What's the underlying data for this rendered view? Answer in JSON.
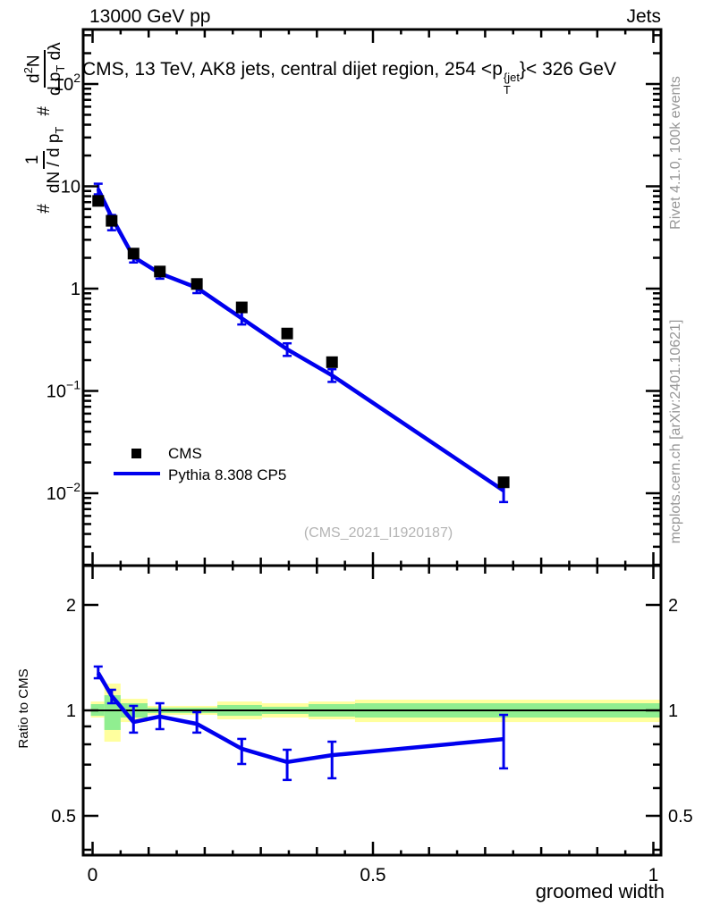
{
  "header": {
    "left": "13000 GeV pp",
    "right": "Jets"
  },
  "title": {
    "prefix": "CMS, 13 TeV, AK8 jets, central dijet region, 254 <p",
    "sup": "{jet",
    "sub": "T",
    "suffix": "}< 326 GeV"
  },
  "y_title": {
    "hash1": "#",
    "num1": "1",
    "den1_main": "dN / d p",
    "den1_sub": "T",
    "hash2": "#",
    "num2_a": "d",
    "num2_exp": "2",
    "num2_b": "N",
    "den2_a": "d p",
    "den2_sub": "T",
    "den2_b": " dλ"
  },
  "legend": {
    "items": [
      {
        "label": "CMS",
        "marker": "filled-square"
      },
      {
        "label": "Pythia 8.308 CP5",
        "marker": "line"
      }
    ]
  },
  "watermark": "(CMS_2021_I1920187)",
  "side_notes": {
    "top": "Rivet 4.1.0,  100k events",
    "bottom": "mcplots.cern.ch [arXiv:2401.10621]"
  },
  "ratio_panel_label": "Ratio to CMS",
  "colors": {
    "mc_line": "#0000ee",
    "data_marker": "#000000",
    "band_total": "#ffff9e",
    "band_stat": "#90ee90",
    "frame": "#000000",
    "side_text": "#969696",
    "watermark_text": "#b4b4b4"
  },
  "chart_data": {
    "type": "line",
    "title": "CMS, 13 TeV, AK8 jets, central dijet region, 254 <p_T^{jet}< 326 GeV",
    "xlabel": "groomed width",
    "x_axis": {
      "range": [
        -0.017,
        1.013
      ],
      "ticks": [
        {
          "v": 0,
          "label": "0"
        },
        {
          "v": 0.5,
          "label": "0.5"
        },
        {
          "v": 1,
          "label": "1"
        }
      ],
      "minor_tick_step": 0.05
    },
    "main_panel": {
      "y_scale": "log",
      "y_range": [
        0.002,
        341
      ],
      "y_ticks": [
        {
          "v": 100,
          "base": "10",
          "exp": "2"
        },
        {
          "v": 10,
          "base": "10",
          "exp": ""
        },
        {
          "v": 1,
          "base": "1",
          "exp": ""
        },
        {
          "v": 0.1,
          "base": "10",
          "exp": "−1"
        },
        {
          "v": 0.01,
          "base": "10",
          "exp": "−2"
        }
      ],
      "series": [
        {
          "name": "CMS",
          "type": "scatter",
          "marker": "filled-square",
          "color": "#000000",
          "x": [
            0.01,
            0.034,
            0.073,
            0.12,
            0.186,
            0.266,
            0.347,
            0.427,
            0.733
          ],
          "y": [
            7.2,
            4.6,
            2.2,
            1.47,
            1.11,
            0.655,
            0.364,
            0.191,
            0.0128
          ]
        },
        {
          "name": "Pythia 8.308 CP5",
          "type": "line",
          "color": "#0000ee",
          "x": [
            0.01,
            0.034,
            0.073,
            0.12,
            0.186,
            0.266,
            0.347,
            0.427,
            0.733
          ],
          "y": [
            9.4,
            5.0,
            2.04,
            1.41,
            1.02,
            0.512,
            0.255,
            0.142,
            0.0106
          ],
          "y_err_hi": [
            10.6,
            5.24,
            2.29,
            1.56,
            1.15,
            0.59,
            0.292,
            0.163,
            0.012
          ],
          "y_err_lo": [
            8.34,
            3.72,
            1.8,
            1.25,
            0.904,
            0.446,
            0.22,
            0.1225,
            0.0082
          ]
        }
      ]
    },
    "ratio_panel": {
      "y_scale": "log",
      "y_range": [
        0.386,
        2.59
      ],
      "ylabel": "Ratio to CMS",
      "y_ticks": [
        {
          "v": 2,
          "label": "2"
        },
        {
          "v": 1,
          "label": "1"
        },
        {
          "v": 0.5,
          "label": "0.5"
        }
      ],
      "y_minor_ticks": [
        0.4,
        0.6,
        0.7,
        0.8,
        0.9
      ],
      "ratio": {
        "x": [
          0.01,
          0.034,
          0.073,
          0.12,
          0.186,
          0.266,
          0.347,
          0.427,
          0.733
        ],
        "y": [
          1.28,
          1.1,
          0.926,
          0.96,
          0.915,
          0.777,
          0.712,
          0.745,
          0.828
        ],
        "y_err_hi": [
          1.334,
          1.145,
          1.03,
          1.048,
          0.988,
          0.829,
          0.772,
          0.814,
          0.971
        ],
        "y_err_lo": [
          1.235,
          1.048,
          0.864,
          0.884,
          0.864,
          0.703,
          0.633,
          0.64,
          0.683
        ]
      },
      "bands": [
        {
          "x0": -0.003,
          "x1": 0.021,
          "total_lo": 0.954,
          "total_hi": 1.06,
          "stat_lo": 0.965,
          "stat_hi": 1.042
        },
        {
          "x0": 0.021,
          "x1": 0.05,
          "total_lo": 0.814,
          "total_hi": 1.193,
          "stat_lo": 0.879,
          "stat_hi": 1.105
        },
        {
          "x0": 0.05,
          "x1": 0.098,
          "total_lo": 0.926,
          "total_hi": 1.079,
          "stat_lo": 0.954,
          "stat_hi": 1.048
        },
        {
          "x0": 0.098,
          "x1": 0.2225,
          "total_lo": 0.971,
          "total_hi": 1.03,
          "stat_lo": 0.982,
          "stat_hi": 1.018
        },
        {
          "x0": 0.2225,
          "x1": 0.302,
          "total_lo": 0.943,
          "total_hi": 1.06,
          "stat_lo": 0.965,
          "stat_hi": 1.036
        },
        {
          "x0": 0.302,
          "x1": 0.385,
          "total_lo": 0.954,
          "total_hi": 1.048,
          "stat_lo": 0.977,
          "stat_hi": 1.024
        },
        {
          "x0": 0.385,
          "x1": 0.468,
          "total_lo": 0.943,
          "total_hi": 1.06,
          "stat_lo": 0.96,
          "stat_hi": 1.042
        },
        {
          "x0": 0.468,
          "x1": 1.013,
          "total_lo": 0.926,
          "total_hi": 1.073,
          "stat_lo": 0.954,
          "stat_hi": 1.048
        }
      ]
    }
  }
}
